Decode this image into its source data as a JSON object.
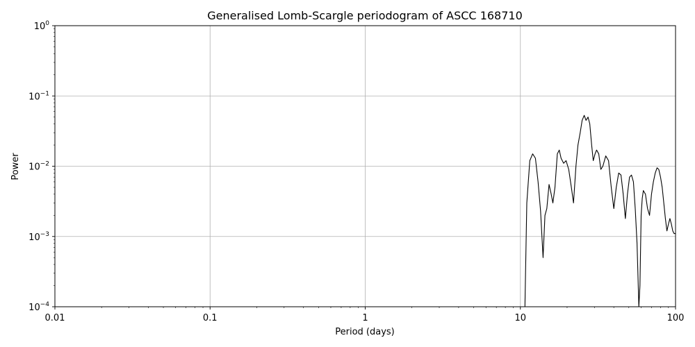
{
  "chart_data": {
    "type": "line",
    "title": "Generalised Lomb-Scargle periodogram of ASCC 168710",
    "xlabel": "Period (days)",
    "ylabel": "Power",
    "xscale": "log",
    "yscale": "log",
    "xlim": [
      0.01,
      100
    ],
    "ylim": [
      0.0001,
      1
    ],
    "grid": true,
    "x_ticks": [
      {
        "value": 0.01,
        "label": "0.01"
      },
      {
        "value": 0.1,
        "label": "0.1"
      },
      {
        "value": 1,
        "label": "1"
      },
      {
        "value": 10,
        "label": "10"
      },
      {
        "value": 100,
        "label": "100"
      }
    ],
    "y_ticks": [
      {
        "value": 0.0001,
        "base": "10",
        "exp": "−4"
      },
      {
        "value": 0.001,
        "base": "10",
        "exp": "−3"
      },
      {
        "value": 0.01,
        "base": "10",
        "exp": "−2"
      },
      {
        "value": 0.1,
        "base": "10",
        "exp": "−1"
      },
      {
        "value": 1,
        "base": "10",
        "exp": "0"
      }
    ],
    "series": [
      {
        "color": "#000000",
        "x": [
          10.7,
          11.0,
          11.5,
          12.0,
          12.5,
          13.0,
          13.5,
          14.0,
          14.4,
          14.8,
          15.3,
          15.8,
          16.2,
          16.7,
          17.3,
          17.8,
          18.3,
          19.0,
          19.7,
          20.5,
          21.3,
          22.0,
          22.8,
          23.5,
          24.3,
          25.0,
          25.8,
          26.5,
          27.3,
          28.0,
          28.8,
          29.5,
          30.3,
          31.0,
          32.0,
          33.0,
          34.0,
          35.5,
          37.0,
          38.5,
          40.0,
          41.5,
          43.0,
          44.5,
          46.0,
          47.5,
          49.0,
          50.5,
          52.0,
          53.5,
          55.0,
          56.5,
          58.0,
          59.0,
          60.0,
          61.0,
          62.0,
          64.0,
          66.0,
          68.0,
          70.0,
          72.0,
          74.0,
          76.0,
          78.0,
          80.0,
          82.0,
          84.0,
          86.0,
          88.0,
          90.0,
          92.0,
          94.0,
          96.0,
          98.0,
          100.0
        ],
        "y": [
          0.0001,
          0.003,
          0.012,
          0.015,
          0.013,
          0.006,
          0.0023,
          0.0005,
          0.002,
          0.0025,
          0.0055,
          0.004,
          0.003,
          0.005,
          0.015,
          0.017,
          0.013,
          0.011,
          0.012,
          0.009,
          0.005,
          0.003,
          0.01,
          0.02,
          0.03,
          0.045,
          0.053,
          0.045,
          0.05,
          0.04,
          0.02,
          0.012,
          0.015,
          0.017,
          0.015,
          0.009,
          0.01,
          0.014,
          0.012,
          0.005,
          0.0025,
          0.005,
          0.008,
          0.0075,
          0.004,
          0.0018,
          0.004,
          0.007,
          0.0075,
          0.006,
          0.0025,
          0.0008,
          0.0001,
          0.0002,
          0.002,
          0.0035,
          0.0045,
          0.004,
          0.0025,
          0.002,
          0.004,
          0.006,
          0.008,
          0.0095,
          0.009,
          0.007,
          0.005,
          0.003,
          0.0018,
          0.0012,
          0.0015,
          0.0018,
          0.0015,
          0.0012,
          0.0011,
          0.0011
        ]
      }
    ]
  }
}
